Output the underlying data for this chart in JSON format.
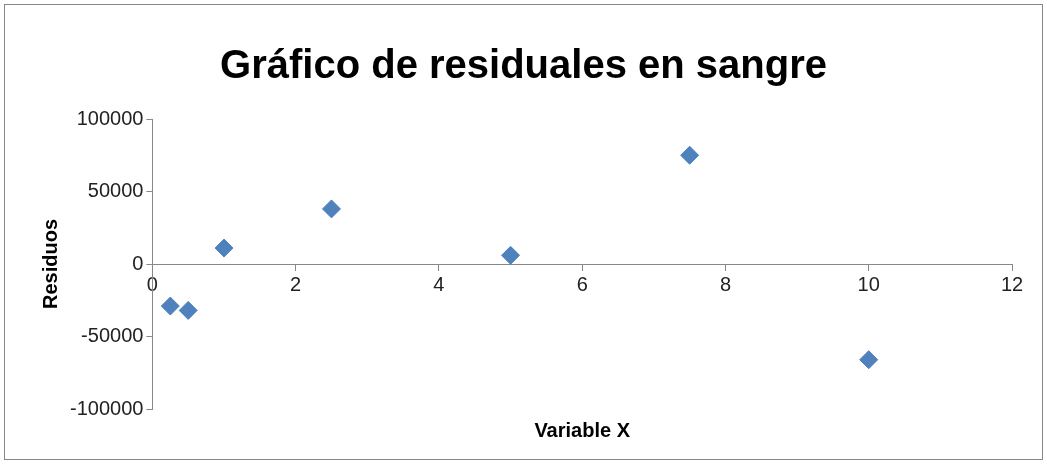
{
  "chart_data": {
    "type": "scatter",
    "title": "Gráfico de residuales en sangre",
    "xlabel": "Variable X",
    "ylabel": "Residuos",
    "x": [
      0.25,
      0.5,
      1,
      2.5,
      5,
      7.5,
      10
    ],
    "series": [
      {
        "color": "#4f81bd",
        "values": [
          -29000,
          -32000,
          11000,
          38000,
          6000,
          75000,
          -66000
        ]
      }
    ],
    "xlim": [
      0,
      12
    ],
    "xticks": [
      0,
      2,
      4,
      6,
      8,
      10,
      12
    ],
    "ylim": [
      -100000,
      100000
    ],
    "yticks": [
      -100000,
      -50000,
      0,
      50000,
      100000
    ],
    "grid": false,
    "legend": false,
    "marker": "diamond"
  }
}
